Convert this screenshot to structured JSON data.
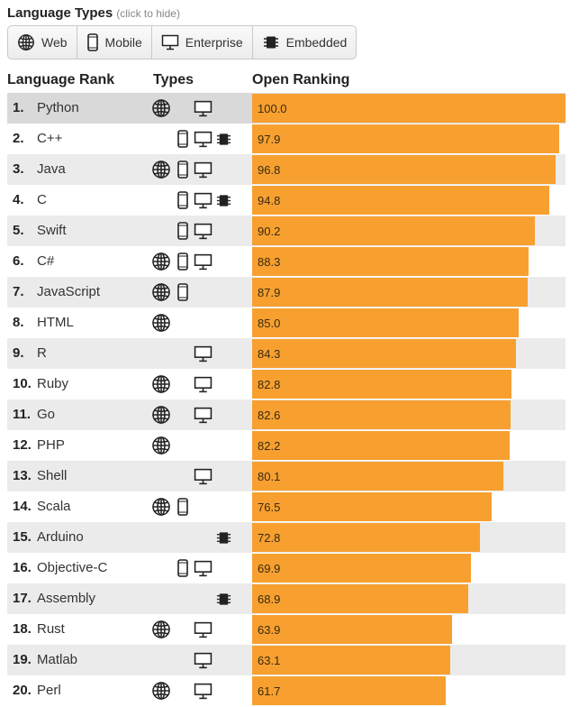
{
  "header": {
    "title": "Language Types",
    "hint": "(click to hide)"
  },
  "filters": [
    {
      "label": "Web",
      "icon": "globe-icon"
    },
    {
      "label": "Mobile",
      "icon": "mobile-icon"
    },
    {
      "label": "Enterprise",
      "icon": "monitor-icon"
    },
    {
      "label": "Embedded",
      "icon": "chip-icon"
    }
  ],
  "columns": {
    "rank": "Language Rank",
    "types": "Types",
    "ranking": "Open Ranking"
  },
  "colors": {
    "bar": "#f7a030"
  },
  "chart_data": {
    "type": "bar",
    "orientation": "horizontal",
    "title": "",
    "ylim": [
      0,
      100
    ],
    "rows": [
      {
        "rank": "1.",
        "name": "Python",
        "value": 100.0,
        "value_label": "100.0",
        "types": [
          "web",
          "enterprise"
        ]
      },
      {
        "rank": "2.",
        "name": "C++",
        "value": 97.9,
        "value_label": "97.9",
        "types": [
          "mobile",
          "enterprise",
          "embedded"
        ]
      },
      {
        "rank": "3.",
        "name": "Java",
        "value": 96.8,
        "value_label": "96.8",
        "types": [
          "web",
          "mobile",
          "enterprise"
        ]
      },
      {
        "rank": "4.",
        "name": "C",
        "value": 94.8,
        "value_label": "94.8",
        "types": [
          "mobile",
          "enterprise",
          "embedded"
        ]
      },
      {
        "rank": "5.",
        "name": "Swift",
        "value": 90.2,
        "value_label": "90.2",
        "types": [
          "mobile",
          "enterprise"
        ]
      },
      {
        "rank": "6.",
        "name": "C#",
        "value": 88.3,
        "value_label": "88.3",
        "types": [
          "web",
          "mobile",
          "enterprise"
        ]
      },
      {
        "rank": "7.",
        "name": "JavaScript",
        "value": 87.9,
        "value_label": "87.9",
        "types": [
          "web",
          "mobile"
        ]
      },
      {
        "rank": "8.",
        "name": "HTML",
        "value": 85.0,
        "value_label": "85.0",
        "types": [
          "web"
        ]
      },
      {
        "rank": "9.",
        "name": "R",
        "value": 84.3,
        "value_label": "84.3",
        "types": [
          "enterprise"
        ]
      },
      {
        "rank": "10.",
        "name": "Ruby",
        "value": 82.8,
        "value_label": "82.8",
        "types": [
          "web",
          "enterprise"
        ]
      },
      {
        "rank": "11.",
        "name": "Go",
        "value": 82.6,
        "value_label": "82.6",
        "types": [
          "web",
          "enterprise"
        ]
      },
      {
        "rank": "12.",
        "name": "PHP",
        "value": 82.2,
        "value_label": "82.2",
        "types": [
          "web"
        ]
      },
      {
        "rank": "13.",
        "name": "Shell",
        "value": 80.1,
        "value_label": "80.1",
        "types": [
          "enterprise"
        ]
      },
      {
        "rank": "14.",
        "name": "Scala",
        "value": 76.5,
        "value_label": "76.5",
        "types": [
          "web",
          "mobile"
        ]
      },
      {
        "rank": "15.",
        "name": "Arduino",
        "value": 72.8,
        "value_label": "72.8",
        "types": [
          "embedded"
        ]
      },
      {
        "rank": "16.",
        "name": "Objective-C",
        "value": 69.9,
        "value_label": "69.9",
        "types": [
          "mobile",
          "enterprise"
        ]
      },
      {
        "rank": "17.",
        "name": "Assembly",
        "value": 68.9,
        "value_label": "68.9",
        "types": [
          "embedded"
        ]
      },
      {
        "rank": "18.",
        "name": "Rust",
        "value": 63.9,
        "value_label": "63.9",
        "types": [
          "web",
          "enterprise"
        ]
      },
      {
        "rank": "19.",
        "name": "Matlab",
        "value": 63.1,
        "value_label": "63.1",
        "types": [
          "enterprise"
        ]
      },
      {
        "rank": "20.",
        "name": "Perl",
        "value": 61.7,
        "value_label": "61.7",
        "types": [
          "web",
          "enterprise"
        ]
      }
    ]
  }
}
